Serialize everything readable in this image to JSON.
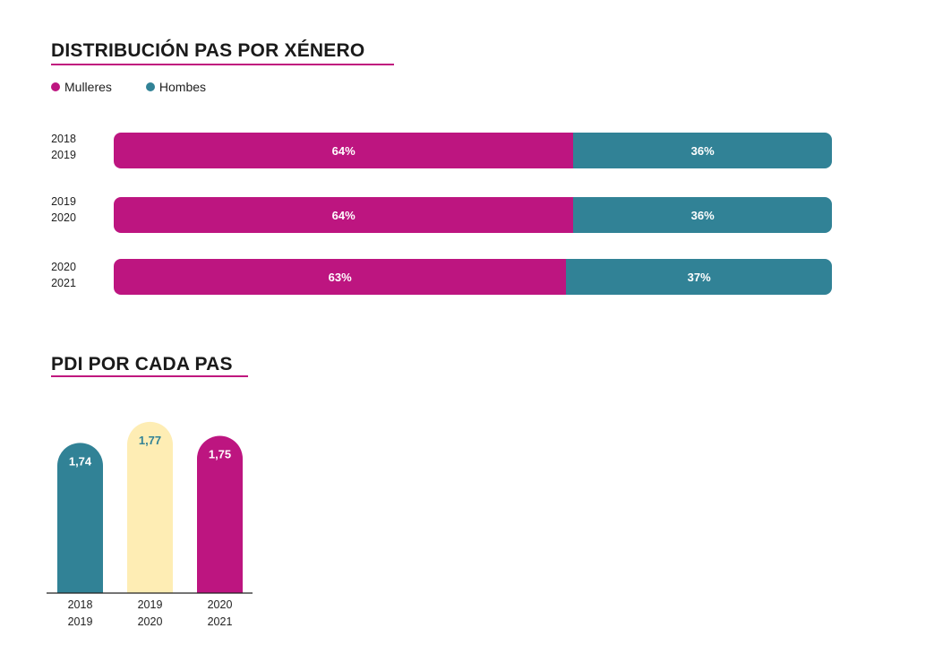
{
  "colors": {
    "women": "#bd1580",
    "men": "#318296",
    "highlight": "#feedb4"
  },
  "legend": [
    {
      "label": "Mulleres",
      "color": "#bd1580"
    },
    {
      "label": "Hombes",
      "color": "#318296"
    }
  ],
  "chart_data": [
    {
      "type": "bar",
      "orientation": "horizontal",
      "stacked": true,
      "title": "DISTRIBUCIÓN PAS POR XÉNERO",
      "categories": [
        [
          "2018",
          "2019"
        ],
        [
          "2019",
          "2020"
        ],
        [
          "2020",
          "2021"
        ]
      ],
      "series": [
        {
          "name": "Mulleres",
          "values": [
            64,
            64,
            63
          ],
          "labels": [
            "64%",
            "64%",
            "63%"
          ]
        },
        {
          "name": "Hombes",
          "values": [
            36,
            36,
            37
          ],
          "labels": [
            "36%",
            "36%",
            "37%"
          ]
        }
      ],
      "legend_position": "top-left"
    },
    {
      "type": "bar",
      "orientation": "vertical",
      "title": "PDI POR CADA PAS",
      "categories": [
        [
          "2018",
          "2019"
        ],
        [
          "2019",
          "2020"
        ],
        [
          "2020",
          "2021"
        ]
      ],
      "values": [
        1.74,
        1.77,
        1.75
      ],
      "labels": [
        "1,74",
        "1,77",
        "1,75"
      ],
      "bar_colors": [
        "#318296",
        "#feedb4",
        "#bd1580"
      ],
      "label_colors": [
        "#ffffff",
        "#318296",
        "#ffffff"
      ]
    }
  ]
}
